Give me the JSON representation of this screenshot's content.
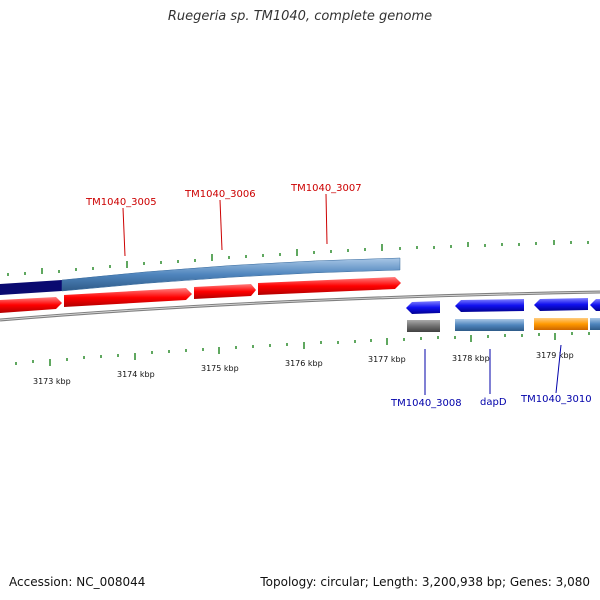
{
  "title": "Ruegeria sp. TM1040, complete genome",
  "footer": {
    "accession": "Accession: NC_008044",
    "summary": "Topology: circular; Length: 3,200,938 bp; Genes: 3,080"
  },
  "colors": {
    "forward_gene": "#ff0000",
    "reverse_gene": "#1010f0",
    "feature_steelblue": "#4f85bd",
    "feature_navy": "#0a0a70",
    "feature_orange": "#ff9900",
    "feature_gray": "#707070",
    "backbone": "#808080",
    "tick": "#2b8a2b",
    "label_forward": "#cc0000",
    "label_reverse": "#0000aa"
  },
  "scale_labels": [
    "3173 kbp",
    "3174 kbp",
    "3175 kbp",
    "3176 kbp",
    "3177 kbp",
    "3178 kbp",
    "3179 kbp"
  ],
  "gene_labels": {
    "forward": [
      "TM1040_3005",
      "TM1040_3006",
      "TM1040_3007"
    ],
    "reverse": [
      "TM1040_3008",
      "dapD",
      "TM1040_3010"
    ]
  }
}
